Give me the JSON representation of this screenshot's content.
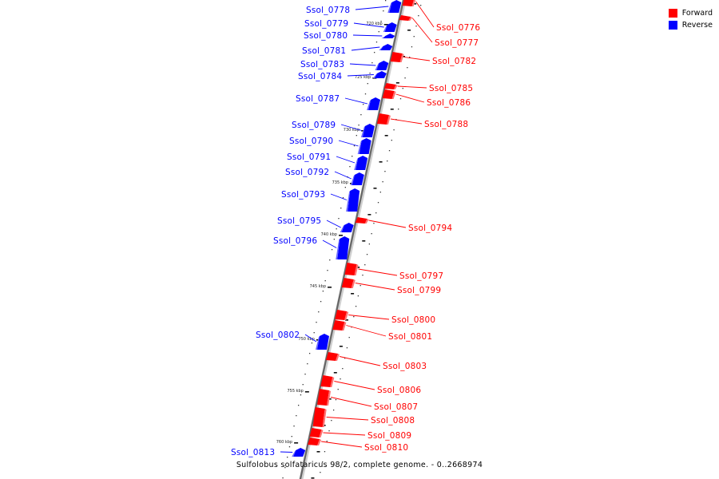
{
  "legend": {
    "items": [
      {
        "label": "Forward",
        "color": "#ff0000"
      },
      {
        "label": "Reverse",
        "color": "#0000ff"
      }
    ]
  },
  "caption": "Sulfolobus solfataricus 98/2, complete genome. - 0..2668974",
  "ticks": [
    "720 kbp",
    "725 kbp",
    "730 kbp",
    "735 kbp",
    "740 kbp",
    "745 kbp",
    "750 kbp",
    "755 kbp",
    "760 kbp"
  ],
  "genes": [
    {
      "name": "Ssol_0776",
      "strand": "forward"
    },
    {
      "name": "Ssol_0777",
      "strand": "forward"
    },
    {
      "name": "Ssol_0778",
      "strand": "reverse"
    },
    {
      "name": "Ssol_0779",
      "strand": "reverse"
    },
    {
      "name": "Ssol_0780",
      "strand": "reverse"
    },
    {
      "name": "Ssol_0781",
      "strand": "reverse"
    },
    {
      "name": "Ssol_0782",
      "strand": "forward"
    },
    {
      "name": "Ssol_0783",
      "strand": "reverse"
    },
    {
      "name": "Ssol_0784",
      "strand": "reverse"
    },
    {
      "name": "Ssol_0785",
      "strand": "forward"
    },
    {
      "name": "Ssol_0786",
      "strand": "forward"
    },
    {
      "name": "Ssol_0787",
      "strand": "reverse"
    },
    {
      "name": "Ssol_0788",
      "strand": "forward"
    },
    {
      "name": "Ssol_0789",
      "strand": "reverse"
    },
    {
      "name": "Ssol_0790",
      "strand": "reverse"
    },
    {
      "name": "Ssol_0791",
      "strand": "reverse"
    },
    {
      "name": "Ssol_0792",
      "strand": "reverse"
    },
    {
      "name": "Ssol_0793",
      "strand": "reverse"
    },
    {
      "name": "Ssol_0794",
      "strand": "forward"
    },
    {
      "name": "Ssol_0795",
      "strand": "reverse"
    },
    {
      "name": "Ssol_0796",
      "strand": "reverse"
    },
    {
      "name": "Ssol_0797",
      "strand": "forward"
    },
    {
      "name": "Ssol_0799",
      "strand": "forward"
    },
    {
      "name": "Ssol_0800",
      "strand": "forward"
    },
    {
      "name": "Ssol_0801",
      "strand": "forward"
    },
    {
      "name": "Ssol_0802",
      "strand": "reverse"
    },
    {
      "name": "Ssol_0803",
      "strand": "forward"
    },
    {
      "name": "Ssol_0806",
      "strand": "forward"
    },
    {
      "name": "Ssol_0807",
      "strand": "forward"
    },
    {
      "name": "Ssol_0808",
      "strand": "forward"
    },
    {
      "name": "Ssol_0809",
      "strand": "forward"
    },
    {
      "name": "Ssol_0810",
      "strand": "forward"
    },
    {
      "name": "Ssol_0813",
      "strand": "reverse"
    }
  ]
}
